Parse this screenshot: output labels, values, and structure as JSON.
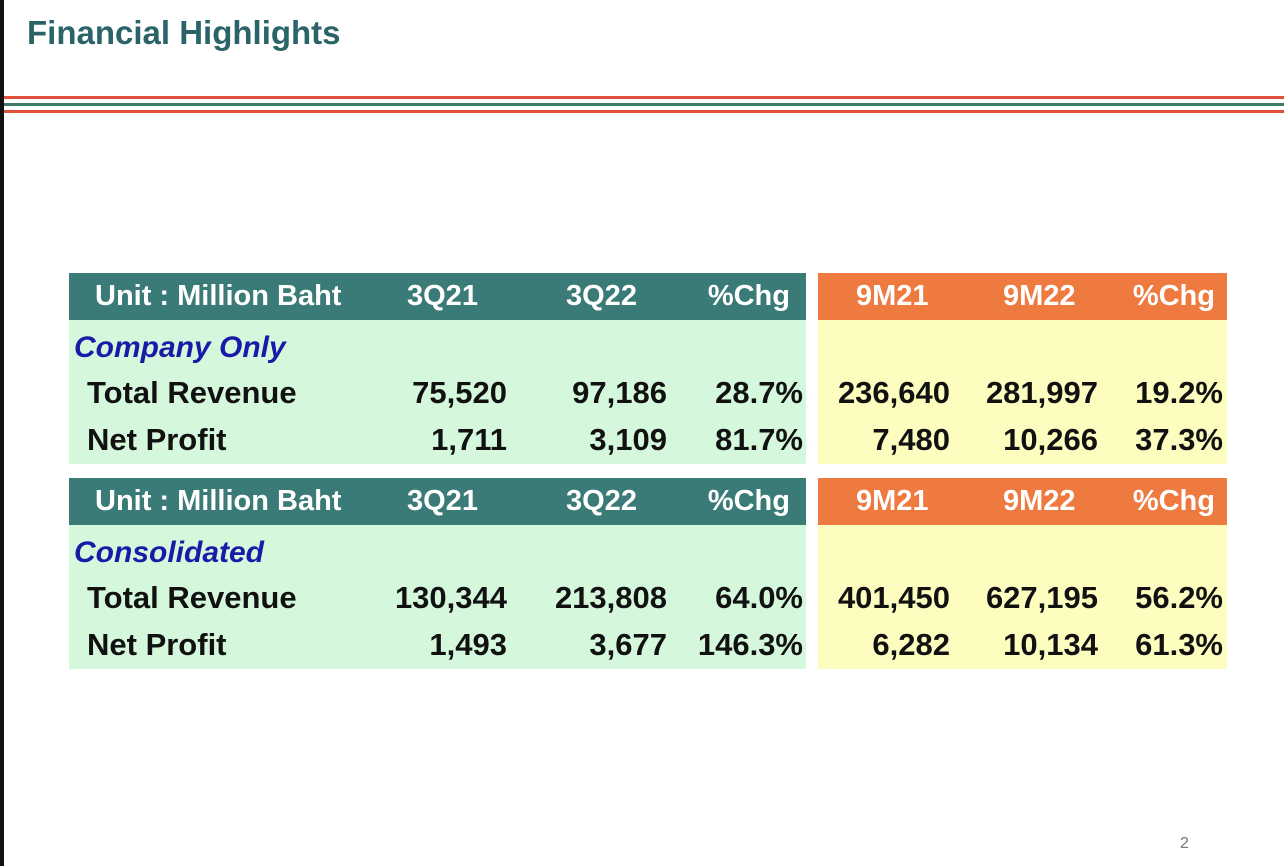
{
  "title": "Financial Highlights",
  "page_number": "2",
  "tables": [
    {
      "header": {
        "unit": "Unit : Million Baht",
        "q_prev": "3Q21",
        "q_cur": "3Q22",
        "q_chg": "%Chg",
        "m_prev": "9M21",
        "m_cur": "9M22",
        "m_chg": "%Chg"
      },
      "section": "Company Only",
      "rows": [
        {
          "label": "Total Revenue",
          "q_prev": "75,520",
          "q_cur": "97,186",
          "q_chg": "28.7%",
          "m_prev": "236,640",
          "m_cur": "281,997",
          "m_chg": "19.2%"
        },
        {
          "label": "Net Profit",
          "q_prev": "1,711",
          "q_cur": "3,109",
          "q_chg": "81.7%",
          "m_prev": "7,480",
          "m_cur": "10,266",
          "m_chg": "37.3%"
        }
      ]
    },
    {
      "header": {
        "unit": "Unit : Million Baht",
        "q_prev": "3Q21",
        "q_cur": "3Q22",
        "q_chg": "%Chg",
        "m_prev": "9M21",
        "m_cur": "9M22",
        "m_chg": "%Chg"
      },
      "section": "Consolidated",
      "rows": [
        {
          "label": "Total Revenue",
          "q_prev": "130,344",
          "q_cur": "213,808",
          "q_chg": "64.0%",
          "m_prev": "401,450",
          "m_cur": "627,195",
          "m_chg": "56.2%"
        },
        {
          "label": "Net Profit",
          "q_prev": "1,493",
          "q_cur": "3,677",
          "q_chg": "146.3%",
          "m_prev": "6,282",
          "m_cur": "10,134",
          "m_chg": "61.3%"
        }
      ]
    }
  ],
  "colors": {
    "title": "#2b6468",
    "quarter_header_bg": "#3b7b77",
    "nine_month_header_bg": "#ef7a3f",
    "quarter_body_bg": "#d5f8dc",
    "nine_month_body_bg": "#fefdc0",
    "section_label": "#1a1aa8",
    "rule_red": "#e0503a",
    "rule_green": "#3f7a64"
  }
}
